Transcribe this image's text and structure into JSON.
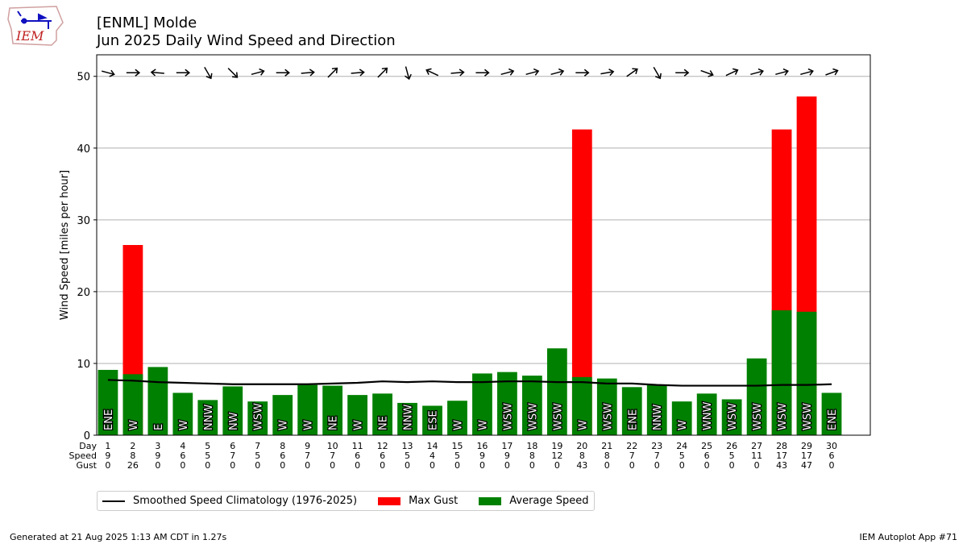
{
  "header": {
    "station": "[ENML] Molde",
    "subtitle": "Jun 2025 Daily Wind Speed and Direction"
  },
  "logo": {
    "text": "IEM"
  },
  "footer": {
    "generated": "Generated at 21 Aug 2025 1:13 AM CDT in 1.27s",
    "app": "IEM Autoplot App #71"
  },
  "legend": {
    "climatology": "Smoothed Speed Climatology (1976-2025)",
    "gust": "Max Gust",
    "average": "Average Speed"
  },
  "colors": {
    "gust": "#ff0000",
    "average": "#008000",
    "climatology": "#000000",
    "grid": "#b0b0b0"
  },
  "chart_data": {
    "type": "bar",
    "title": "[ENML] Molde",
    "subtitle": "Jun 2025 Daily Wind Speed and Direction",
    "ylabel": "Wind Speed [miles per hour]",
    "ylim": [
      0,
      53
    ],
    "yticks": [
      0,
      10,
      20,
      30,
      40,
      50
    ],
    "grid": true,
    "legend_position": "bottom",
    "row_labels": [
      "Day",
      "Speed",
      "Gust"
    ],
    "days": [
      1,
      2,
      3,
      4,
      5,
      6,
      7,
      8,
      9,
      10,
      11,
      12,
      13,
      14,
      15,
      16,
      17,
      18,
      19,
      20,
      21,
      22,
      23,
      24,
      25,
      26,
      27,
      28,
      29,
      30
    ],
    "avg_speed": [
      9.1,
      8.5,
      9.5,
      5.9,
      4.9,
      6.8,
      4.7,
      5.6,
      7.0,
      6.9,
      5.6,
      5.8,
      4.5,
      4.1,
      4.8,
      8.6,
      8.8,
      8.3,
      12.1,
      8.1,
      7.9,
      6.7,
      7.0,
      4.7,
      5.8,
      5.0,
      10.7,
      17.4,
      17.2,
      5.9
    ],
    "max_gust": [
      0,
      26.5,
      0,
      0,
      0,
      0,
      0,
      0,
      0,
      0,
      0,
      0,
      0,
      0,
      0,
      0,
      0,
      0,
      0,
      42.6,
      0,
      0,
      0,
      0,
      0,
      0,
      0,
      42.6,
      47.2,
      0
    ],
    "speed_labels": [
      "9",
      "8",
      "9",
      "6",
      "5",
      "7",
      "5",
      "6",
      "7",
      "7",
      "6",
      "6",
      "5",
      "4",
      "5",
      "9",
      "9",
      "8",
      "12",
      "8",
      "8",
      "7",
      "7",
      "5",
      "6",
      "5",
      "11",
      "17",
      "17",
      "6"
    ],
    "gust_labels": [
      "0",
      "26",
      "0",
      "0",
      "0",
      "0",
      "0",
      "0",
      "0",
      "0",
      "0",
      "0",
      "0",
      "0",
      "0",
      "0",
      "0",
      "0",
      "0",
      "43",
      "0",
      "0",
      "0",
      "0",
      "0",
      "0",
      "0",
      "43",
      "47",
      "0"
    ],
    "directions": [
      "ENE",
      "W",
      "E",
      "W",
      "NNW",
      "NW",
      "WSW",
      "W",
      "W",
      "NE",
      "W",
      "NE",
      "NNW",
      "ESE",
      "W",
      "W",
      "WSW",
      "WSW",
      "WSW",
      "W",
      "WSW",
      "ENE",
      "NNW",
      "W",
      "WNW",
      "WSW",
      "WSW",
      "WSW",
      "WSW",
      "ENE"
    ],
    "arrow_rotation_deg": [
      15,
      0,
      185,
      0,
      60,
      45,
      -15,
      0,
      -5,
      -45,
      -5,
      -45,
      75,
      205,
      -5,
      0,
      -15,
      -15,
      -15,
      0,
      -10,
      -35,
      60,
      0,
      20,
      -25,
      -15,
      -15,
      -15,
      -20
    ],
    "climatology": [
      7.7,
      7.6,
      7.4,
      7.3,
      7.2,
      7.1,
      7.1,
      7.1,
      7.1,
      7.2,
      7.3,
      7.5,
      7.4,
      7.5,
      7.4,
      7.4,
      7.5,
      7.5,
      7.4,
      7.4,
      7.2,
      7.2,
      7.0,
      6.9,
      6.9,
      6.9,
      6.9,
      7.0,
      7.0,
      7.1
    ]
  }
}
